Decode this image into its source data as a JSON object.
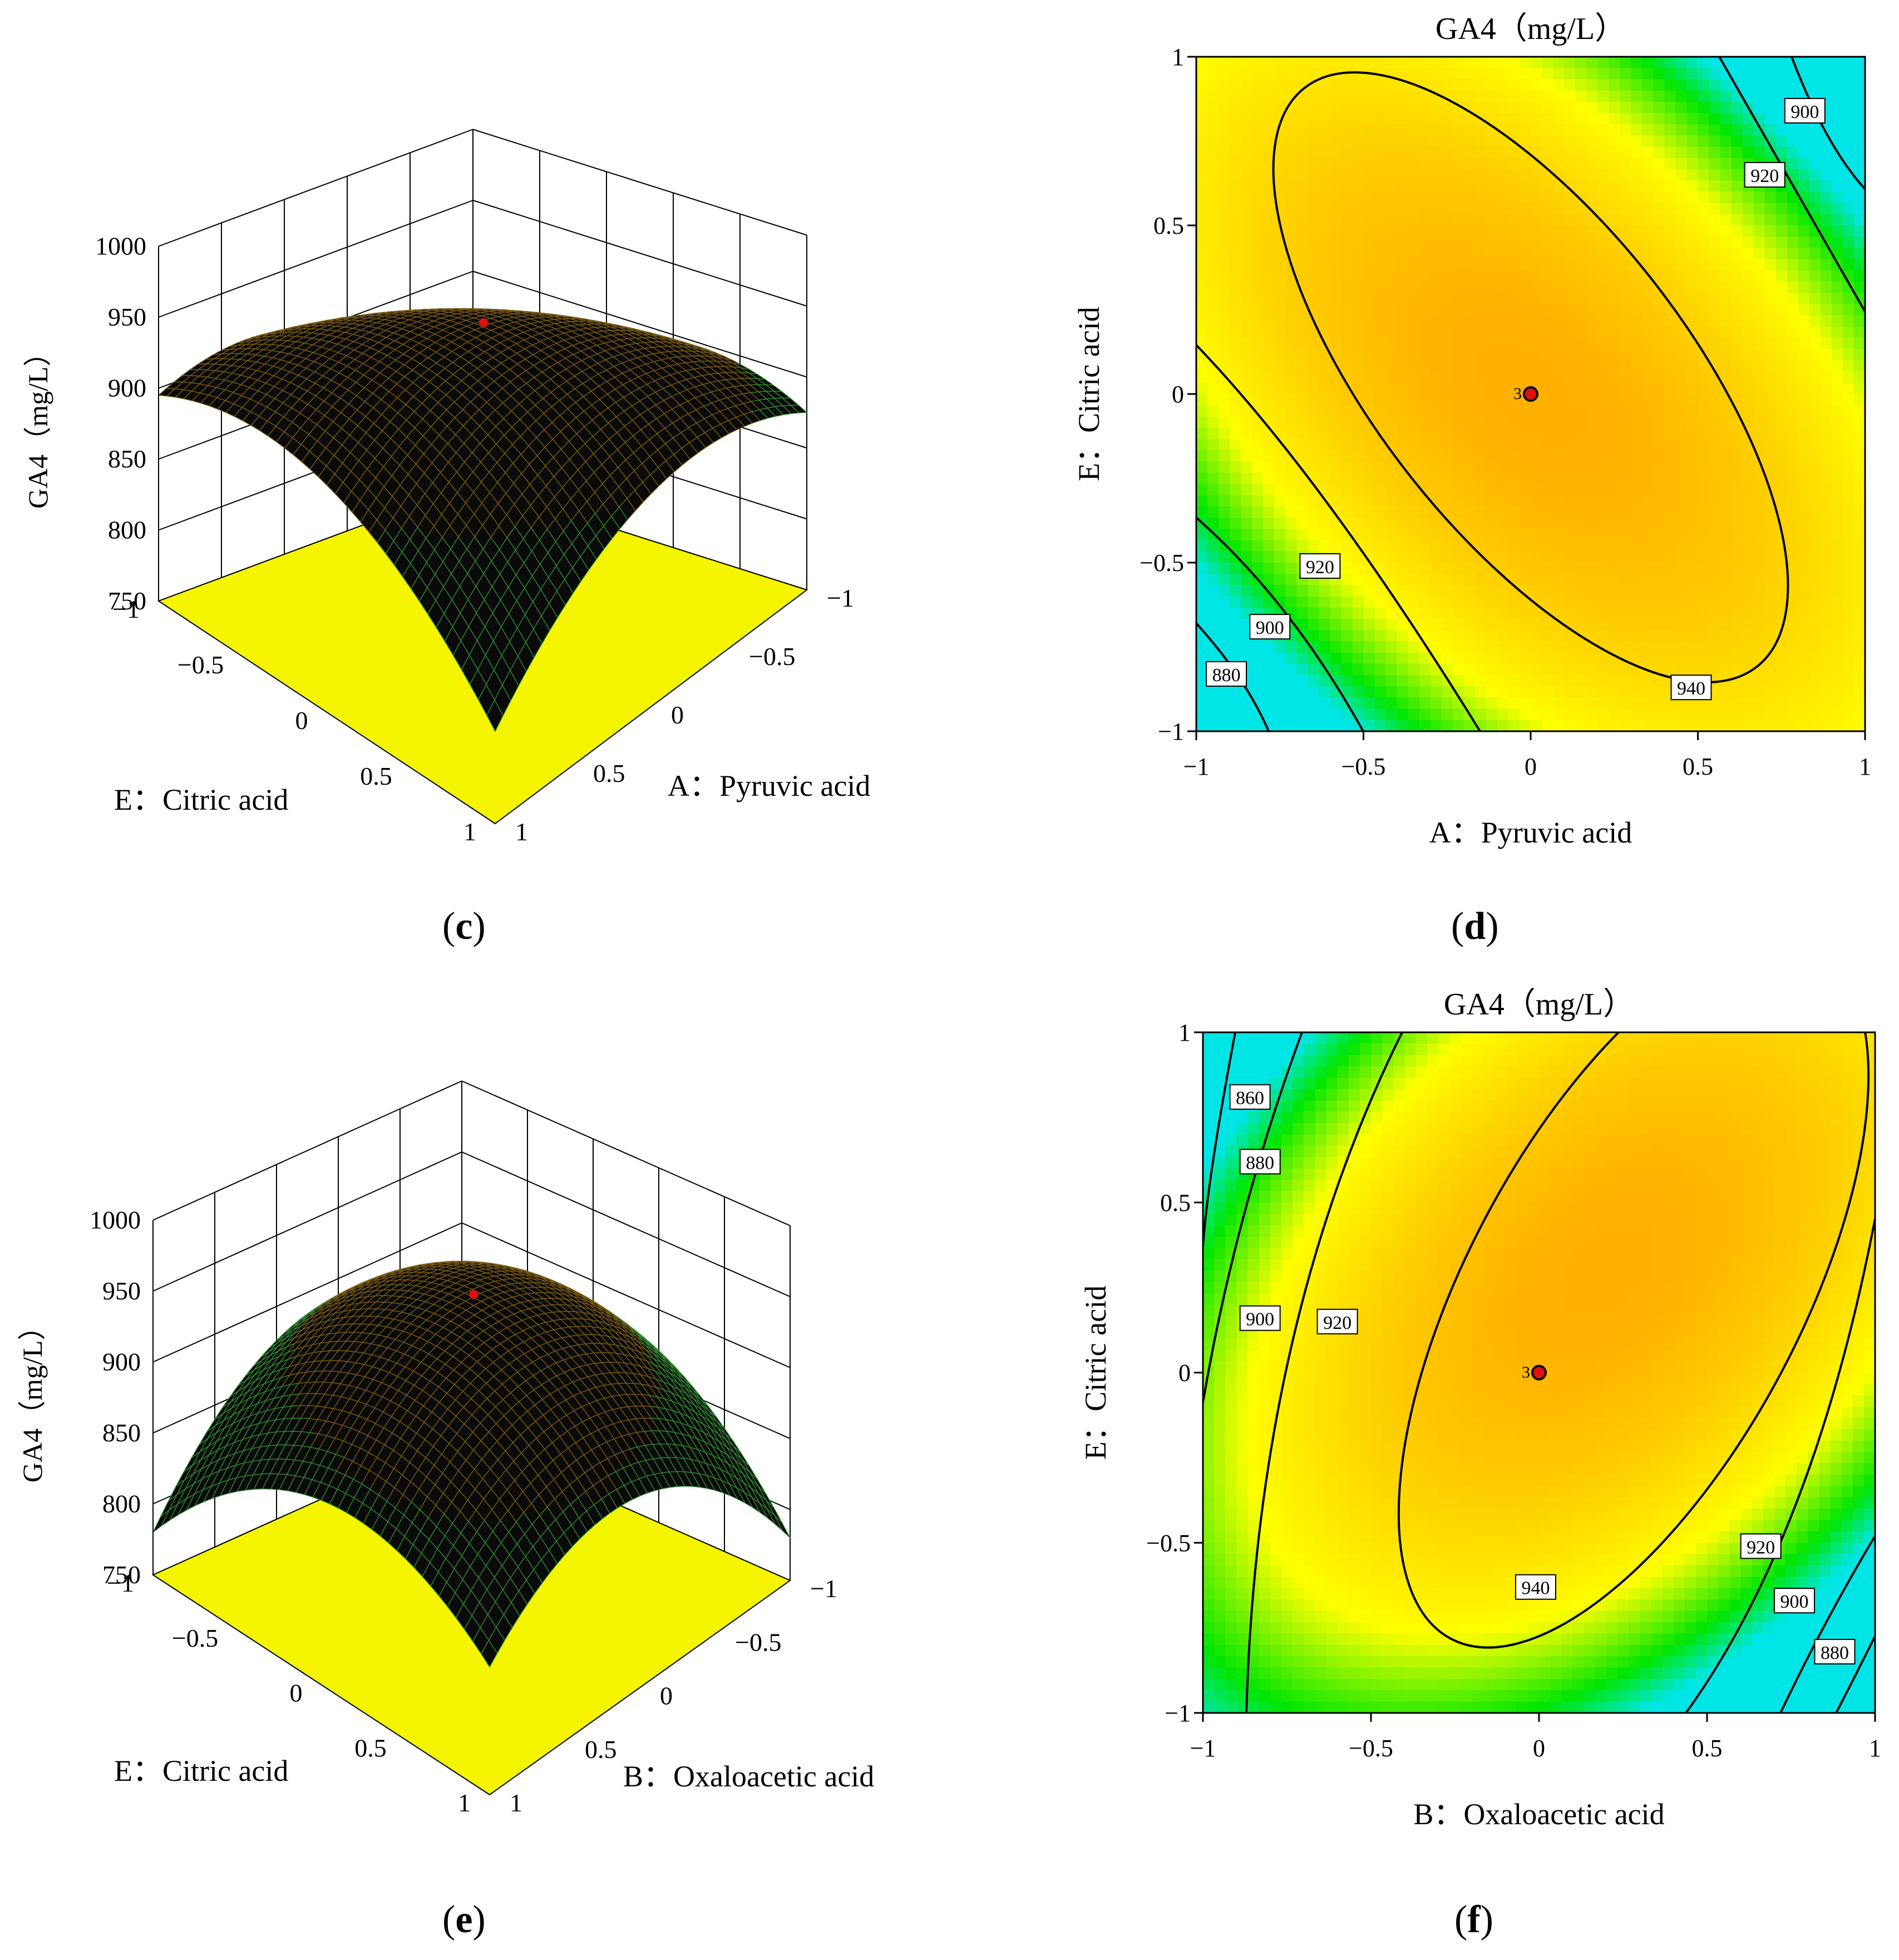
{
  "figure": {
    "panel_c": {
      "caption_open": "(",
      "caption_letter": "c",
      "caption_close": ")"
    },
    "panel_d": {
      "caption_open": "(",
      "caption_letter": "d",
      "caption_close": ")"
    },
    "panel_e": {
      "caption_open": "(",
      "caption_letter": "e",
      "caption_close": ")"
    },
    "panel_f": {
      "caption_open": "(",
      "caption_letter": "f",
      "caption_close": ")"
    }
  },
  "colors": {
    "surface_dark": "#000000",
    "floor_yellow": "#f5f500",
    "contour_green": "#33dd33",
    "map_orange": "#ffb000",
    "map_yellow": "#ffff00",
    "map_green": "#00e600",
    "map_cyan": "#00e6e6",
    "design_point": "#e01010"
  },
  "chart_data": [
    {
      "id": "c",
      "type": "surface",
      "title": "",
      "zlabel": "GA4（mg/L）",
      "z_ticks": [
        "1000",
        "950",
        "900",
        "850",
        "800",
        "750"
      ],
      "zlim": [
        750,
        1000
      ],
      "x_axis": {
        "label": "A：Pyruvic acid",
        "ticks": [
          "−1",
          "−0.5",
          "0",
          "0.5",
          "1"
        ]
      },
      "y_axis": {
        "label": "E：Citric acid",
        "ticks": [
          "−1",
          "−0.5",
          "0",
          "0.5",
          "1"
        ]
      },
      "design_point": {
        "x": 0,
        "y": 0,
        "z": 955
      }
    },
    {
      "id": "d",
      "type": "contour",
      "title": "GA4（mg/L）",
      "xlabel": "A：Pyruvic acid",
      "ylabel": "E：Citric acid",
      "xlim": [
        -1,
        1
      ],
      "ylim": [
        -1,
        1
      ],
      "x_ticks": [
        "−1",
        "−0.5",
        "0",
        "0.5",
        "1"
      ],
      "y_ticks": [
        "1",
        "0.5",
        "0",
        "−0.5",
        "−1"
      ],
      "contour_labels": [
        "900",
        "920",
        "920",
        "900",
        "880",
        "940"
      ],
      "center_label": "3",
      "design_point": {
        "x": 0,
        "y": 0
      }
    },
    {
      "id": "e",
      "type": "surface",
      "title": "",
      "zlabel": "GA4（mg/L）",
      "z_ticks": [
        "1000",
        "950",
        "900",
        "850",
        "800",
        "750"
      ],
      "zlim": [
        750,
        1000
      ],
      "x_axis": {
        "label": "B：Oxaloacetic acid",
        "ticks": [
          "−1",
          "−0.5",
          "0",
          "0.5",
          "1"
        ]
      },
      "y_axis": {
        "label": "E：Citric acid",
        "ticks": [
          "−1",
          "−0.5",
          "0",
          "0.5",
          "1"
        ]
      },
      "design_point": {
        "x": 0,
        "y": 0,
        "z": 955
      }
    },
    {
      "id": "f",
      "type": "contour",
      "title": "GA4（mg/L）",
      "xlabel": "B：Oxaloacetic acid",
      "ylabel": "E：Citric acid",
      "xlim": [
        -1,
        1
      ],
      "ylim": [
        -1,
        1
      ],
      "x_ticks": [
        "−1",
        "−0.5",
        "0",
        "0.5",
        "1"
      ],
      "y_ticks": [
        "1",
        "0.5",
        "0",
        "−0.5",
        "−1"
      ],
      "contour_labels": [
        "860",
        "880",
        "900",
        "920",
        "920",
        "900",
        "880",
        "940"
      ],
      "center_label": "3",
      "design_point": {
        "x": 0,
        "y": 0
      }
    }
  ]
}
